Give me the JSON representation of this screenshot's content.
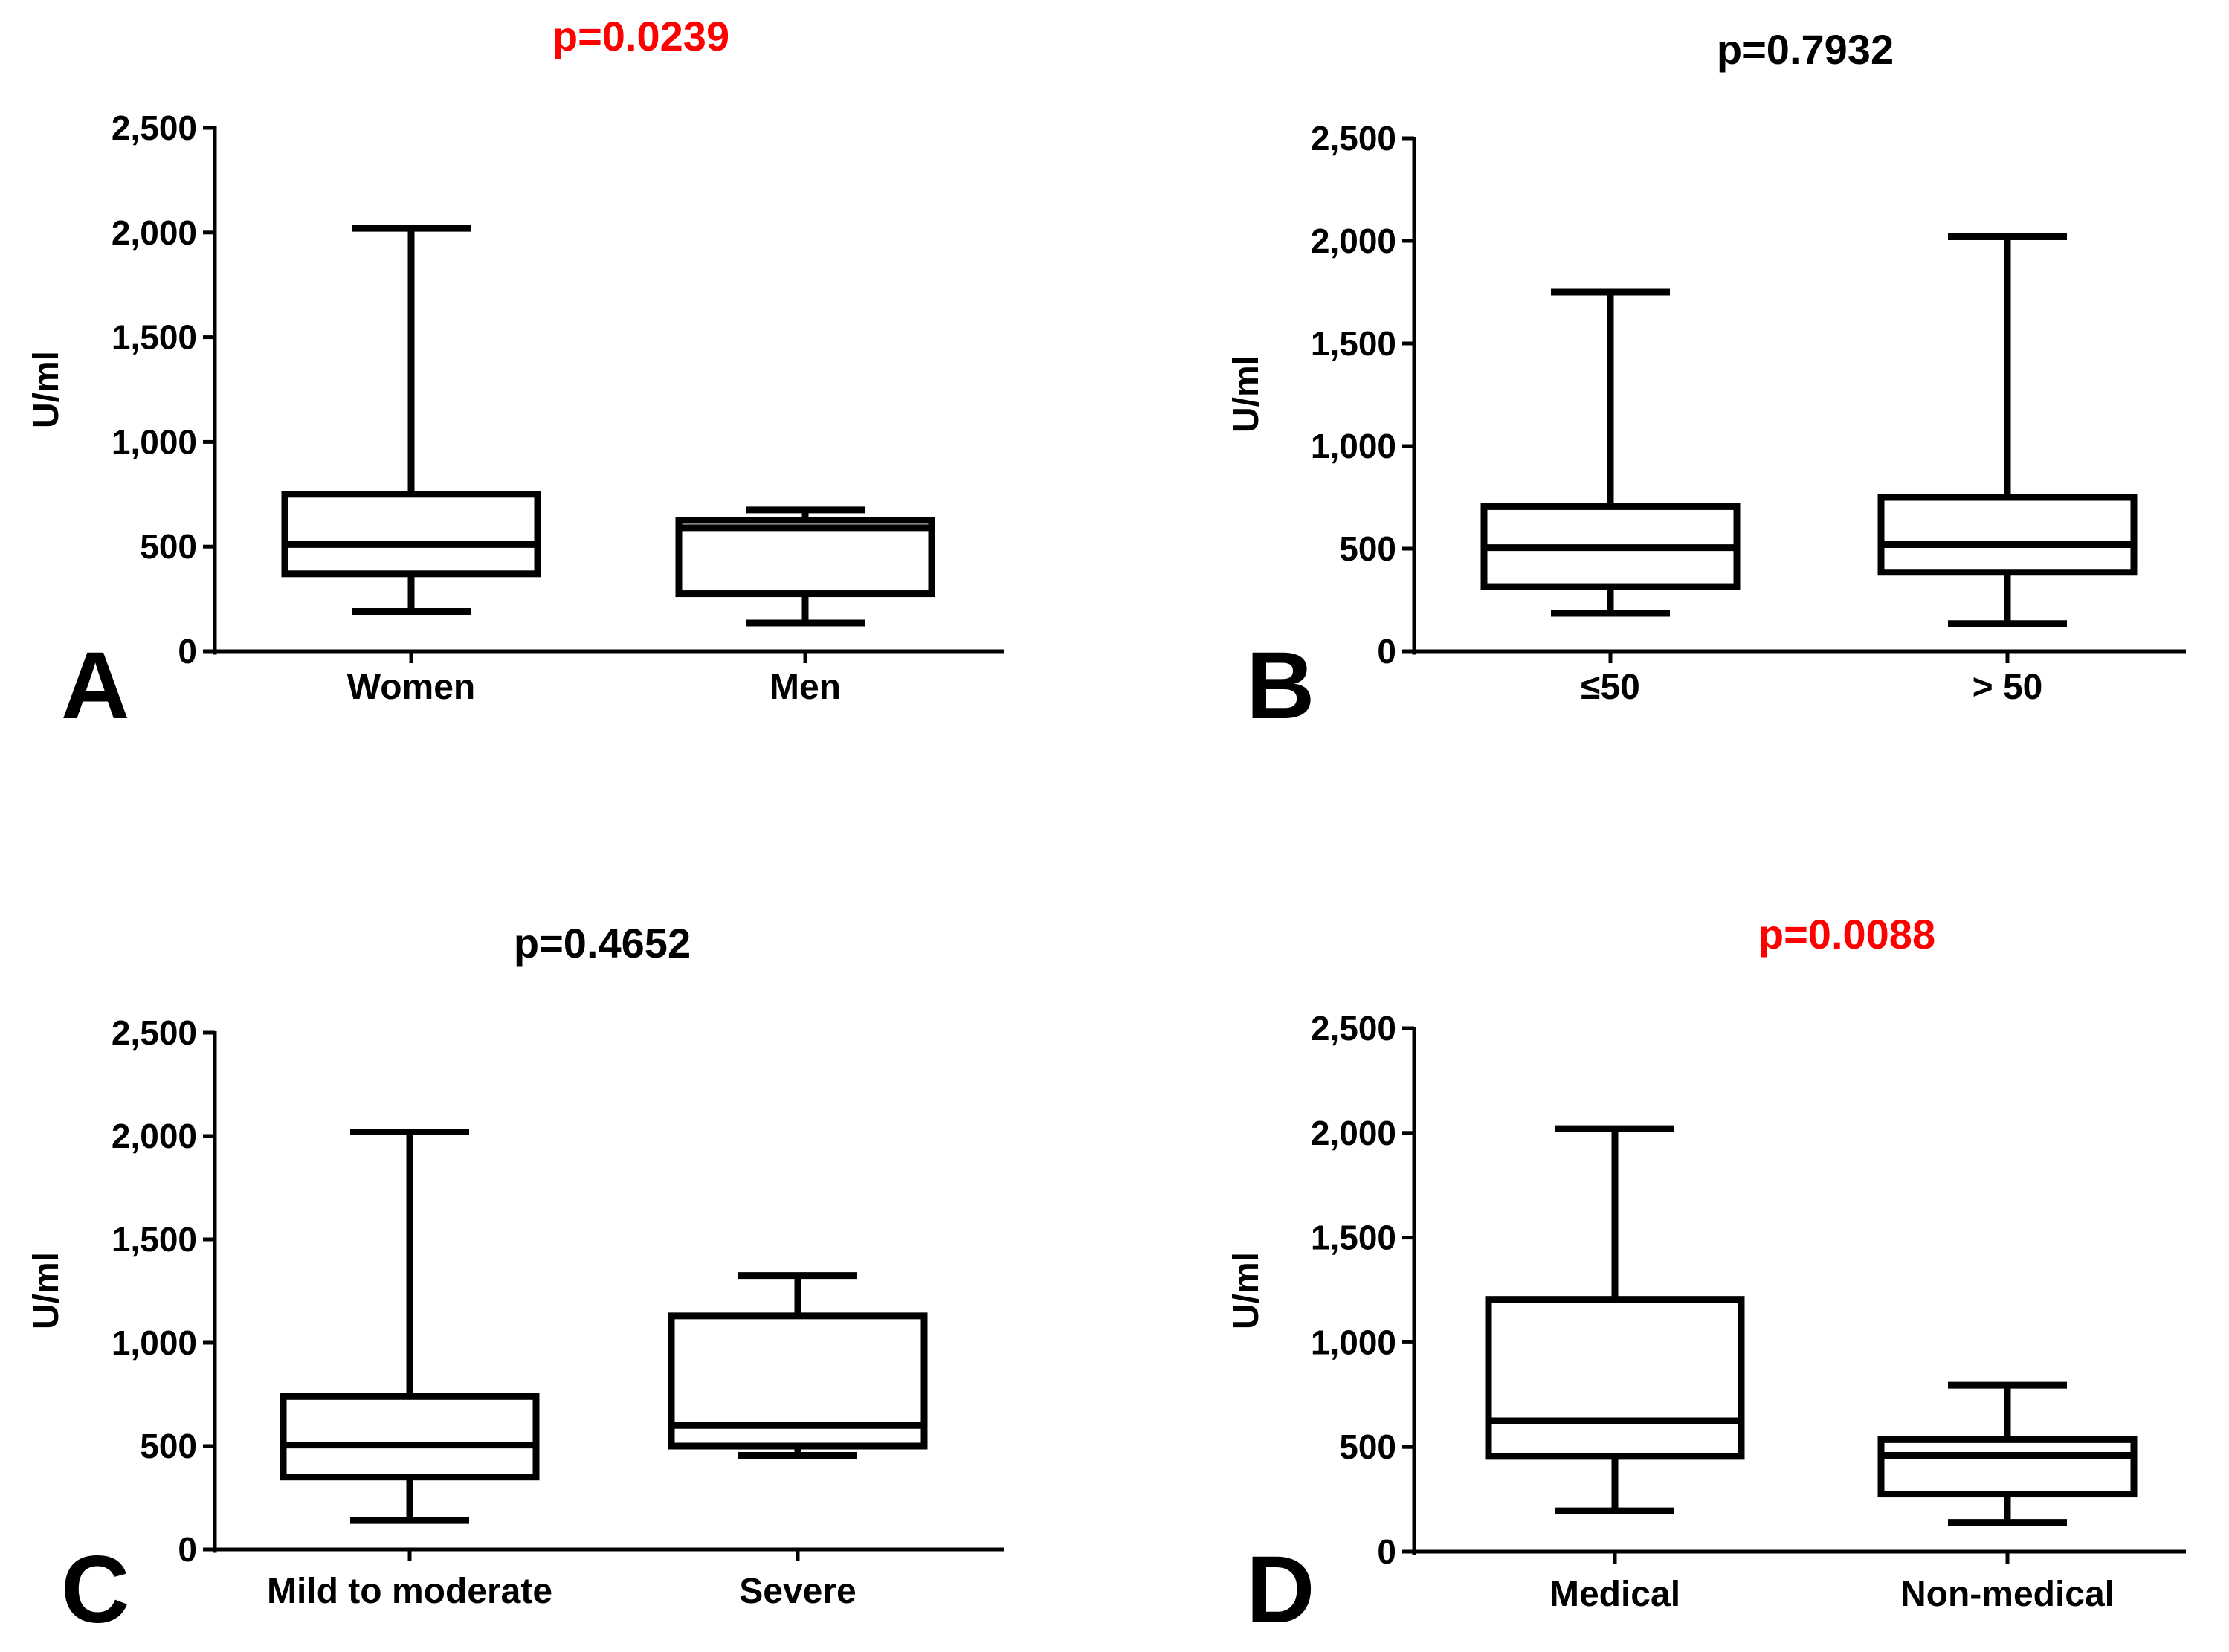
{
  "colors": {
    "axis": "#000000",
    "significant": "#ff0000",
    "non_significant": "#000000"
  },
  "chart_data": [
    {
      "panel": "A",
      "type": "box",
      "title": "p=0.0239",
      "significant": true,
      "ylabel": "U/ml",
      "ylim": [
        0,
        2500
      ],
      "yticks": [
        0,
        500,
        1000,
        1500,
        2000,
        2500
      ],
      "ytick_labels": [
        "0",
        "500",
        "1,000",
        "1,500",
        "2,000",
        "2,500"
      ],
      "categories": [
        "Women",
        "Men"
      ],
      "boxes": [
        {
          "min": 190,
          "q1": 370,
          "median": 510,
          "q3": 750,
          "max": 2020
        },
        {
          "min": 135,
          "q1": 275,
          "median": 590,
          "q3": 625,
          "max": 675
        }
      ]
    },
    {
      "panel": "B",
      "type": "box",
      "title": "p=0.7932",
      "significant": false,
      "ylabel": "U/ml",
      "ylim": [
        0,
        2500
      ],
      "yticks": [
        0,
        500,
        1000,
        1500,
        2000,
        2500
      ],
      "ytick_labels": [
        "0",
        "500",
        "1,000",
        "1,500",
        "2,000",
        "2,500"
      ],
      "categories": [
        "≤50",
        "> 50"
      ],
      "boxes": [
        {
          "min": 185,
          "q1": 315,
          "median": 505,
          "q3": 705,
          "max": 1750
        },
        {
          "min": 135,
          "q1": 385,
          "median": 520,
          "q3": 750,
          "max": 2020
        }
      ]
    },
    {
      "panel": "C",
      "type": "box",
      "title": "p=0.4652",
      "significant": false,
      "ylabel": "U/ml",
      "ylim": [
        0,
        2500
      ],
      "yticks": [
        0,
        500,
        1000,
        1500,
        2000,
        2500
      ],
      "ytick_labels": [
        "0",
        "500",
        "1,000",
        "1,500",
        "2,000",
        "2,500"
      ],
      "categories": [
        "Mild to moderate",
        "Severe"
      ],
      "boxes": [
        {
          "min": 140,
          "q1": 350,
          "median": 505,
          "q3": 740,
          "max": 2020
        },
        {
          "min": 455,
          "q1": 500,
          "median": 600,
          "q3": 1130,
          "max": 1325
        }
      ]
    },
    {
      "panel": "D",
      "type": "box",
      "title": "p=0.0088",
      "significant": true,
      "ylabel": "U/ml",
      "ylim": [
        0,
        2500
      ],
      "yticks": [
        0,
        500,
        1000,
        1500,
        2000,
        2500
      ],
      "ytick_labels": [
        "0",
        "500",
        "1,000",
        "1,500",
        "2,000",
        "2,500"
      ],
      "categories": [
        "Medical",
        "Non-medical"
      ],
      "boxes": [
        {
          "min": 195,
          "q1": 455,
          "median": 625,
          "q3": 1205,
          "max": 2020
        },
        {
          "min": 140,
          "q1": 275,
          "median": 460,
          "q3": 535,
          "max": 795
        }
      ]
    }
  ]
}
